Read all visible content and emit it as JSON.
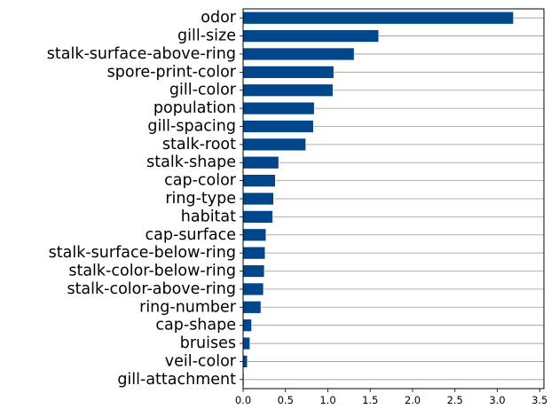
{
  "chart_data": {
    "type": "bar",
    "orientation": "horizontal",
    "categories": [
      "odor",
      "gill-size",
      "stalk-surface-above-ring",
      "spore-print-color",
      "gill-color",
      "population",
      "gill-spacing",
      "stalk-root",
      "stalk-shape",
      "cap-color",
      "ring-type",
      "habitat",
      "cap-surface",
      "stalk-surface-below-ring",
      "stalk-color-below-ring",
      "stalk-color-above-ring",
      "ring-number",
      "cap-shape",
      "bruises",
      "veil-color",
      "gill-attachment"
    ],
    "values": [
      3.19,
      1.6,
      1.31,
      1.07,
      1.06,
      0.84,
      0.83,
      0.74,
      0.42,
      0.38,
      0.36,
      0.35,
      0.27,
      0.26,
      0.25,
      0.24,
      0.21,
      0.1,
      0.08,
      0.05,
      0.01
    ],
    "xticks": [
      "0.0",
      "0.5",
      "1.0",
      "1.5",
      "2.0",
      "2.5",
      "3.0",
      "3.5"
    ],
    "xlim": [
      0,
      3.55
    ],
    "title": "",
    "xlabel": "",
    "ylabel": "",
    "grid": "horizontal lines",
    "bar_color": "#00468b",
    "grid_color": "#999999"
  }
}
